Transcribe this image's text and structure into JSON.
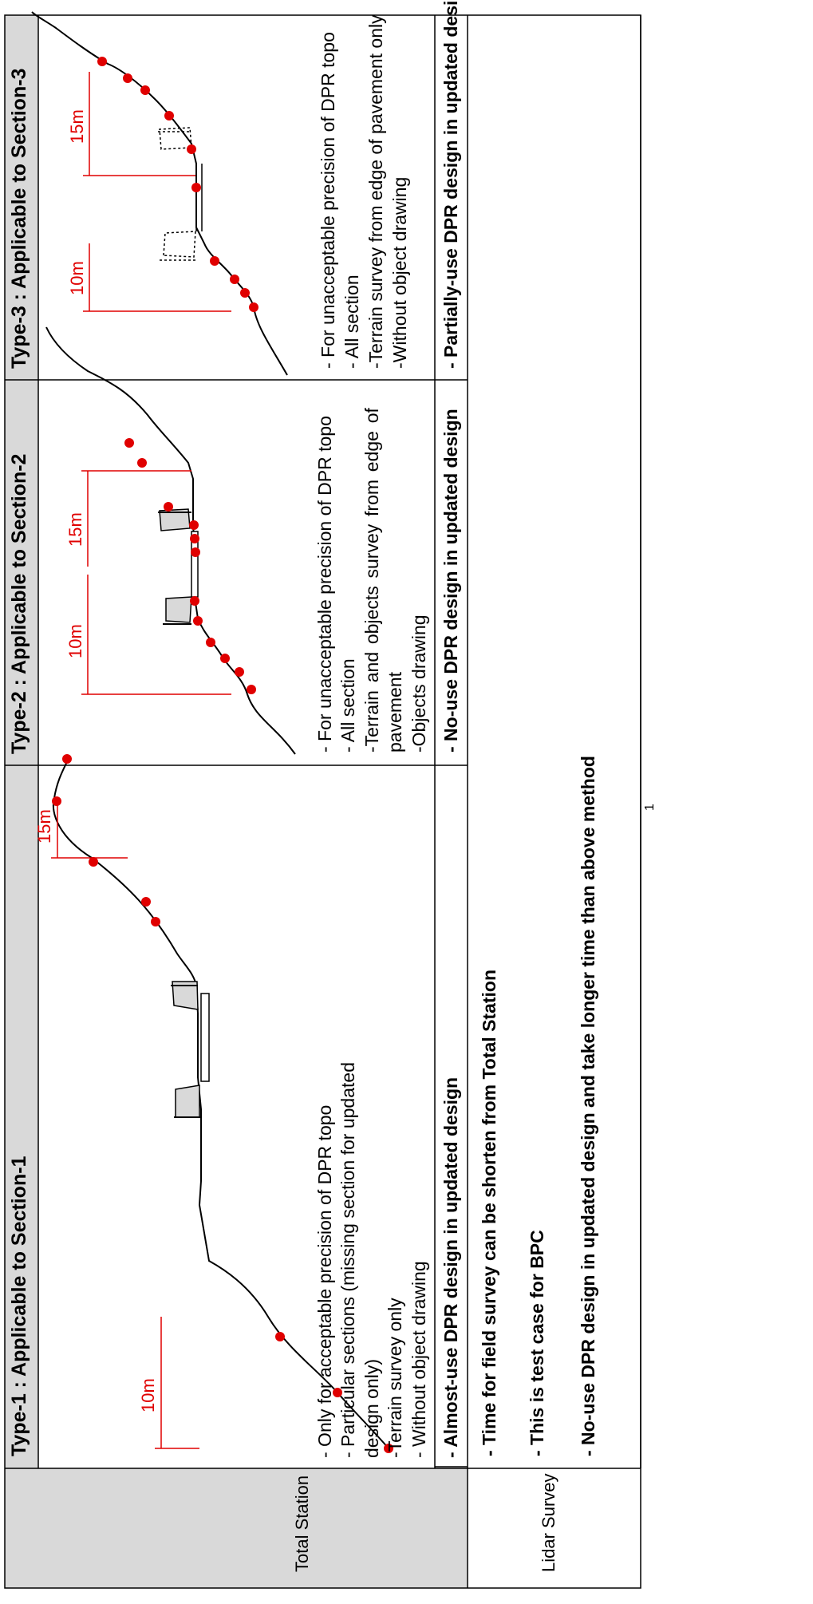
{
  "columns": [
    {
      "header": "Type-1 :   Applicable to Section-1",
      "description": [
        "- Only for acceptable precision of DPR topo",
        "- Particular sections (missing section for updated",
        "design only)",
        "-Terrain survey only",
        "- Without object drawing"
      ],
      "result": "- Almost-use DPR design in updated design",
      "dims": [
        "10m",
        "15m"
      ]
    },
    {
      "header": "Type-2 :   Applicable to Section-2",
      "description": [
        "- For unacceptable precision of DPR topo",
        "- All section",
        "-Terrain and objects survey from edge of",
        "pavement",
        "-Objects drawing"
      ],
      "justified_words": [
        "-Terrain",
        "and",
        "objects",
        "survey",
        "from",
        "edge",
        "of"
      ],
      "result": "- No-use DPR design in updated design",
      "dims": [
        "10m",
        "15m"
      ]
    },
    {
      "header": "Type-3 :   Applicable to Section-3",
      "description": [
        "- For unacceptable precision of DPR topo",
        "- All section",
        "-Terrain survey from edge of pavement only",
        "-Without object drawing"
      ],
      "result": "- Partially-use DPR design in updated design",
      "dims": [
        "10m",
        "15m"
      ]
    }
  ],
  "row_labels": {
    "total_station": "Total Station",
    "lidar_survey": "Lidar Survey"
  },
  "lidar_notes": [
    "- Time for field survey can be shorten from Total Station",
    "- This is test case for BPC",
    "- No-use DPR design in updated design and take longer time than above method"
  ],
  "page_number": "1",
  "colors": {
    "header_bg": "#d9d9d9",
    "dimension": "#e00000",
    "survey_point": "#e00000",
    "grid": "#000000"
  }
}
